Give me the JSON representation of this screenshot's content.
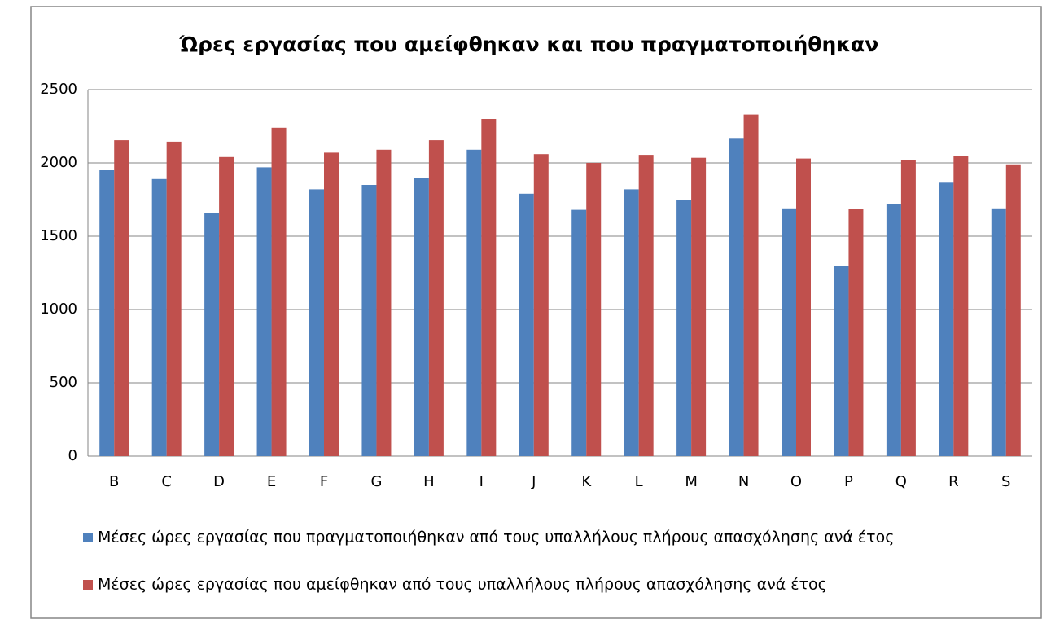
{
  "chart_data": {
    "type": "bar",
    "title": "Ώρες εργασίας που αμείφθηκαν και που πραγματοποιήθηκαν",
    "categories": [
      "B",
      "C",
      "D",
      "E",
      "F",
      "G",
      "H",
      "I",
      "J",
      "K",
      "L",
      "M",
      "N",
      "O",
      "P",
      "Q",
      "R",
      "S"
    ],
    "series": [
      {
        "name": "Μέσες ώρες εργασίας που πραγματοποιήθηκαν από τους υπαλλήλους πλήρους απασχόλησης ανά έτος",
        "color": "#4f81bd",
        "values": [
          1950,
          1890,
          1660,
          1970,
          1820,
          1850,
          1900,
          2090,
          1790,
          1680,
          1820,
          1745,
          2165,
          1690,
          1300,
          1720,
          1865,
          1690
        ]
      },
      {
        "name": "Μέσες ώρες εργασίας που αμείφθηκαν από τους υπαλλήλους πλήρους απασχόλησης ανά έτος",
        "color": "#c0504d",
        "values": [
          2155,
          2145,
          2040,
          2240,
          2070,
          2090,
          2155,
          2300,
          2060,
          2000,
          2055,
          2035,
          2330,
          2030,
          1685,
          2020,
          2045,
          1990
        ]
      }
    ],
    "ylim": [
      0,
      2500
    ],
    "yticks": [
      0,
      500,
      1000,
      1500,
      2000,
      2500
    ],
    "grid": true,
    "legend": "bottom"
  }
}
